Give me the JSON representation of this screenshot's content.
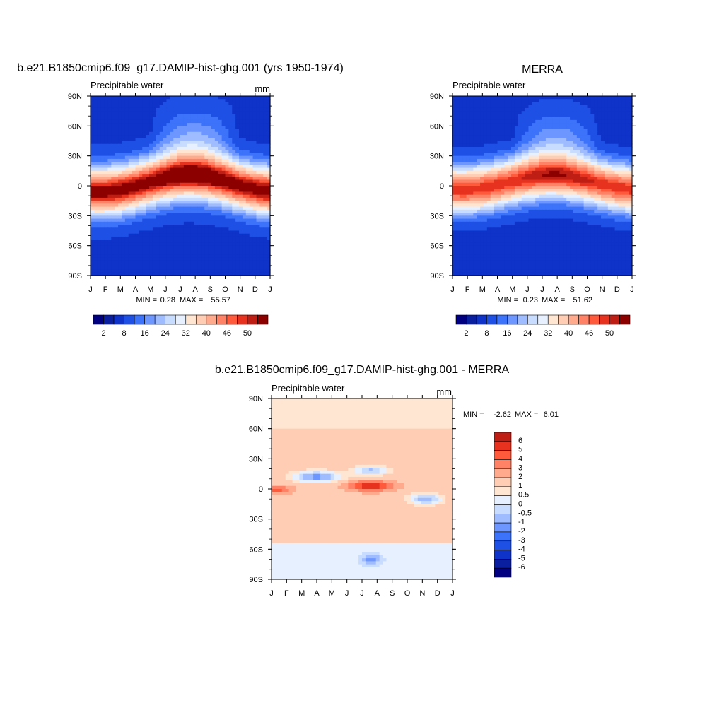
{
  "units_label": "mm",
  "variable_label": "Precipitable water",
  "x_ticks": [
    "J",
    "F",
    "M",
    "A",
    "M",
    "J",
    "J",
    "A",
    "S",
    "O",
    "N",
    "D",
    "J"
  ],
  "y_ticks": [
    "90N",
    "60N",
    "30N",
    "0",
    "30S",
    "60S",
    "90S"
  ],
  "abs_colors": [
    "#000080",
    "#0a1ea0",
    "#0f32c8",
    "#1e50e6",
    "#3c73fa",
    "#6e96ff",
    "#9ebcff",
    "#c8dcff",
    "#e6f0ff",
    "#ffe6d2",
    "#ffcdb4",
    "#ffaa8c",
    "#ff8266",
    "#ff5a3c",
    "#e6321e",
    "#be1e14",
    "#8c0000"
  ],
  "diff_colors": [
    "#000080",
    "#0a1ea0",
    "#0f32c8",
    "#1e50e6",
    "#3c73fa",
    "#6e96ff",
    "#9ebcff",
    "#c8dcff",
    "#e6f0ff",
    "#ffe6d2",
    "#ffcdb4",
    "#ffaa8c",
    "#ff8266",
    "#ff5a3c",
    "#e6321e",
    "#be1e14",
    "#8c0000"
  ],
  "chart_data": [
    {
      "type": "heatmap",
      "title": "b.e21.B1850cmip6.f09_g17.DAMIP-hist-ghg.001 (yrs 1950-1974)",
      "subtitle": "Precipitable water",
      "units": "mm",
      "xlabel": "",
      "ylabel": "",
      "x": [
        "J",
        "F",
        "M",
        "A",
        "M",
        "J",
        "J",
        "A",
        "S",
        "O",
        "N",
        "D",
        "J"
      ],
      "y": [
        "90N",
        "60N",
        "30N",
        "0",
        "30S",
        "60S",
        "90S"
      ],
      "min_label": "MIN =",
      "min_value": "0.28",
      "max_label": "MAX =",
      "max_value": "55.57",
      "colorbar_labels": [
        "2",
        "8",
        "16",
        "24",
        "32",
        "40",
        "46",
        "50"
      ],
      "colorbar_levels": [
        1,
        2,
        4,
        8,
        12,
        16,
        20,
        24,
        28,
        32,
        36,
        40,
        44,
        46,
        48,
        50
      ]
    },
    {
      "type": "heatmap",
      "title": "MERRA",
      "subtitle": "Precipitable water",
      "units": "",
      "xlabel": "",
      "ylabel": "",
      "x": [
        "J",
        "F",
        "M",
        "A",
        "M",
        "J",
        "J",
        "A",
        "S",
        "O",
        "N",
        "D",
        "J"
      ],
      "y": [
        "90N",
        "60N",
        "30N",
        "0",
        "30S",
        "60S",
        "90S"
      ],
      "min_label": "MIN =",
      "min_value": "0.23",
      "max_label": "MAX =",
      "max_value": "51.62",
      "colorbar_labels": [
        "2",
        "8",
        "16",
        "24",
        "32",
        "40",
        "46",
        "50"
      ],
      "colorbar_levels": [
        1,
        2,
        4,
        8,
        12,
        16,
        20,
        24,
        28,
        32,
        36,
        40,
        44,
        46,
        48,
        50
      ]
    },
    {
      "type": "heatmap",
      "title": "b.e21.B1850cmip6.f09_g17.DAMIP-hist-ghg.001 - MERRA",
      "subtitle": "Precipitable water",
      "units": "mm",
      "xlabel": "",
      "ylabel": "",
      "x": [
        "J",
        "F",
        "M",
        "A",
        "M",
        "J",
        "J",
        "A",
        "S",
        "O",
        "N",
        "D",
        "J"
      ],
      "y": [
        "90N",
        "60N",
        "30N",
        "0",
        "30S",
        "60S",
        "90S"
      ],
      "min_label": "MIN =",
      "min_value": "-2.62",
      "max_label": "MAX =",
      "max_value": "6.01",
      "colorbar_labels": [
        "6",
        "5",
        "4",
        "3",
        "2",
        "1",
        "0.5",
        "0",
        "-0.5",
        "-1",
        "-2",
        "-3",
        "-4",
        "-5",
        "-6"
      ],
      "colorbar_levels": [
        -6,
        -5,
        -4,
        -3,
        -2,
        -1,
        -0.5,
        0,
        0.5,
        1,
        2,
        3,
        4,
        5,
        6
      ]
    }
  ]
}
